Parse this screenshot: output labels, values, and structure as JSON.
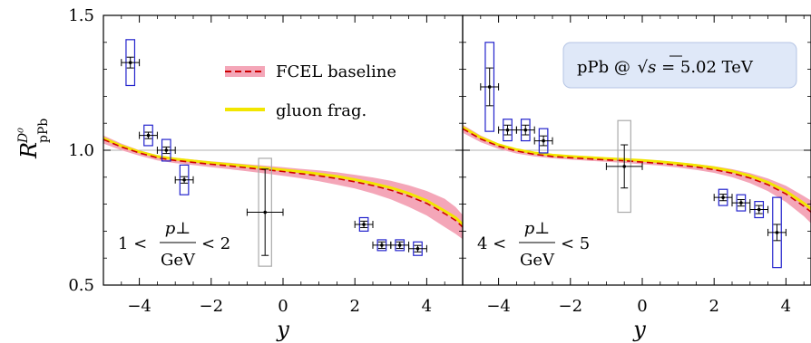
{
  "chart_data": {
    "type": "scatter",
    "ylabel": "R^{D^0}_{pPb}",
    "xlabel": "y",
    "ylim": [
      0.5,
      1.5
    ],
    "xlim": [
      -5,
      5
    ],
    "yticks": [
      0.5,
      1.0,
      1.5
    ],
    "ytick_labels": [
      "0.5",
      "1.0",
      "1.5"
    ],
    "xticks": [
      -4,
      -2,
      0,
      2,
      4
    ],
    "xtick_labels": [
      "−4",
      "−2",
      "0",
      "2",
      "4"
    ],
    "reference_line": 1.0,
    "legend": {
      "placement": "top-center of left panel",
      "entries": [
        {
          "label": "FCEL baseline",
          "color": "#cc0000",
          "band_color": "#f4a6b8",
          "style": "dashed-with-band"
        },
        {
          "label": "gluon frag.",
          "color": "#f2e600",
          "style": "solid"
        }
      ]
    },
    "system_label": "pPb @ √s = 5.02 TeV",
    "system_label_parts": {
      "prefix": "pPb @ ",
      "sqrt_arg": "s",
      "suffix": " = 5.02 TeV"
    },
    "colors": {
      "box_measure": "#2222cc",
      "box_gray": "#aaaaaa",
      "ref_line": "#b0b0b0"
    },
    "panels": [
      {
        "name": "pt-1-2",
        "annotation": {
          "lhs": "1 <",
          "num": "p⊥",
          "den": "GeV",
          "rhs": "< 2"
        },
        "band": {
          "x": [
            -5,
            -4.5,
            -4,
            -3.5,
            -3,
            -2.5,
            -2,
            -1.5,
            -1,
            -0.5,
            0,
            0.5,
            1,
            1.5,
            2,
            2.5,
            3,
            3.5,
            4,
            4.5,
            4.8,
            5
          ],
          "lower": [
            1.025,
            1.0,
            0.98,
            0.962,
            0.952,
            0.945,
            0.937,
            0.93,
            0.922,
            0.914,
            0.905,
            0.896,
            0.885,
            0.872,
            0.858,
            0.84,
            0.818,
            0.79,
            0.758,
            0.715,
            0.69,
            0.67
          ],
          "upper": [
            1.055,
            1.025,
            1.0,
            0.982,
            0.972,
            0.965,
            0.959,
            0.954,
            0.948,
            0.943,
            0.937,
            0.931,
            0.925,
            0.918,
            0.909,
            0.899,
            0.887,
            0.87,
            0.849,
            0.82,
            0.79,
            0.76
          ]
        },
        "fcel": {
          "x": [
            -5,
            -4.5,
            -4,
            -3.5,
            -3,
            -2.5,
            -2,
            -1.5,
            -1,
            -0.5,
            0,
            0.5,
            1,
            1.5,
            2,
            2.5,
            3,
            3.5,
            4,
            4.5,
            4.8,
            5
          ],
          "y": [
            1.04,
            1.012,
            0.99,
            0.972,
            0.962,
            0.955,
            0.948,
            0.942,
            0.935,
            0.928,
            0.921,
            0.913,
            0.905,
            0.895,
            0.883,
            0.869,
            0.852,
            0.83,
            0.803,
            0.765,
            0.74,
            0.715
          ]
        },
        "gluon": {
          "x": [
            -5,
            -4.5,
            -4,
            -3.5,
            -3,
            -2.5,
            -2,
            -1.5,
            -1,
            -0.5,
            0,
            0.5,
            1,
            1.5,
            2,
            2.5,
            3,
            3.5,
            4,
            4.5,
            4.8,
            5
          ],
          "y": [
            1.044,
            1.016,
            0.994,
            0.977,
            0.967,
            0.96,
            0.953,
            0.947,
            0.941,
            0.934,
            0.927,
            0.92,
            0.912,
            0.903,
            0.891,
            0.877,
            0.861,
            0.84,
            0.813,
            0.775,
            0.75,
            0.725
          ]
        },
        "points": [
          {
            "x": -4.25,
            "y": 1.325,
            "xerr": 0.25,
            "yerr": 0.02,
            "box_half_w": 0.12,
            "box_half_h": 0.085,
            "box": "blue"
          },
          {
            "x": -3.75,
            "y": 1.055,
            "xerr": 0.25,
            "yerr": 0.012,
            "box_half_w": 0.12,
            "box_half_h": 0.038,
            "box": "blue"
          },
          {
            "x": -3.25,
            "y": 1.0,
            "xerr": 0.25,
            "yerr": 0.012,
            "box_half_w": 0.12,
            "box_half_h": 0.04,
            "box": "blue"
          },
          {
            "x": -2.75,
            "y": 0.89,
            "xerr": 0.25,
            "yerr": 0.012,
            "box_half_w": 0.12,
            "box_half_h": 0.055,
            "box": "blue"
          },
          {
            "x": -0.5,
            "y": 0.77,
            "xerr": 0.5,
            "yerr": 0.16,
            "box_half_w": 0.18,
            "box_half_h": 0.2,
            "box": "gray"
          },
          {
            "x": 2.25,
            "y": 0.725,
            "xerr": 0.25,
            "yerr": 0.012,
            "box_half_w": 0.12,
            "box_half_h": 0.025,
            "box": "blue"
          },
          {
            "x": 2.75,
            "y": 0.648,
            "xerr": 0.25,
            "yerr": 0.012,
            "box_half_w": 0.12,
            "box_half_h": 0.02,
            "box": "blue"
          },
          {
            "x": 3.25,
            "y": 0.648,
            "xerr": 0.25,
            "yerr": 0.012,
            "box_half_w": 0.12,
            "box_half_h": 0.02,
            "box": "blue"
          },
          {
            "x": 3.75,
            "y": 0.635,
            "xerr": 0.25,
            "yerr": 0.012,
            "box_half_w": 0.12,
            "box_half_h": 0.025,
            "box": "blue"
          }
        ]
      },
      {
        "name": "pt-4-5",
        "annotation": {
          "lhs": "4 <",
          "num": "p⊥",
          "den": "GeV",
          "rhs": "< 5"
        },
        "band": {
          "x": [
            -5,
            -4.5,
            -4,
            -3.5,
            -3,
            -2.5,
            -2,
            -1.5,
            -1,
            -0.5,
            0,
            0.5,
            1,
            1.5,
            2,
            2.5,
            3,
            3.5,
            4,
            4.5,
            4.8,
            5
          ],
          "lower": [
            1.065,
            1.03,
            1.005,
            0.988,
            0.977,
            0.97,
            0.965,
            0.961,
            0.957,
            0.953,
            0.948,
            0.943,
            0.936,
            0.927,
            0.916,
            0.9,
            0.878,
            0.848,
            0.808,
            0.755,
            0.715,
            0.68
          ],
          "upper": [
            1.095,
            1.055,
            1.025,
            1.005,
            0.992,
            0.984,
            0.978,
            0.974,
            0.971,
            0.968,
            0.964,
            0.96,
            0.955,
            0.949,
            0.941,
            0.93,
            0.915,
            0.895,
            0.868,
            0.83,
            0.805,
            0.78
          ]
        },
        "fcel": {
          "x": [
            -5,
            -4.5,
            -4,
            -3.5,
            -3,
            -2.5,
            -2,
            -1.5,
            -1,
            -0.5,
            0,
            0.5,
            1,
            1.5,
            2,
            2.5,
            3,
            3.5,
            4,
            4.5,
            4.8,
            5
          ],
          "y": [
            1.08,
            1.042,
            1.015,
            0.997,
            0.985,
            0.977,
            0.972,
            0.968,
            0.964,
            0.961,
            0.956,
            0.951,
            0.945,
            0.938,
            0.928,
            0.915,
            0.897,
            0.872,
            0.838,
            0.792,
            0.76,
            0.73
          ]
        },
        "gluon": {
          "x": [
            -5,
            -4.5,
            -4,
            -3.5,
            -3,
            -2.5,
            -2,
            -1.5,
            -1,
            -0.5,
            0,
            0.5,
            1,
            1.5,
            2,
            2.5,
            3,
            3.5,
            4,
            4.5,
            4.8,
            5
          ],
          "y": [
            1.085,
            1.047,
            1.02,
            1.002,
            0.99,
            0.982,
            0.977,
            0.973,
            0.969,
            0.966,
            0.962,
            0.957,
            0.951,
            0.944,
            0.935,
            0.922,
            0.905,
            0.881,
            0.848,
            0.803,
            0.772,
            0.742
          ]
        },
        "points": [
          {
            "x": -4.25,
            "y": 1.235,
            "xerr": 0.25,
            "yerr": 0.07,
            "box_half_w": 0.12,
            "box_half_h": 0.165,
            "box": "blue"
          },
          {
            "x": -3.75,
            "y": 1.075,
            "xerr": 0.25,
            "yerr": 0.018,
            "box_half_w": 0.12,
            "box_half_h": 0.04,
            "box": "blue"
          },
          {
            "x": -3.25,
            "y": 1.075,
            "xerr": 0.25,
            "yerr": 0.018,
            "box_half_w": 0.12,
            "box_half_h": 0.04,
            "box": "blue"
          },
          {
            "x": -2.75,
            "y": 1.035,
            "xerr": 0.25,
            "yerr": 0.018,
            "box_half_w": 0.12,
            "box_half_h": 0.045,
            "box": "blue"
          },
          {
            "x": -0.5,
            "y": 0.94,
            "xerr": 0.5,
            "yerr": 0.08,
            "box_half_w": 0.18,
            "box_half_h": 0.17,
            "box": "gray"
          },
          {
            "x": 2.25,
            "y": 0.825,
            "xerr": 0.25,
            "yerr": 0.012,
            "box_half_w": 0.12,
            "box_half_h": 0.03,
            "box": "blue"
          },
          {
            "x": 2.75,
            "y": 0.805,
            "xerr": 0.25,
            "yerr": 0.012,
            "box_half_w": 0.12,
            "box_half_h": 0.03,
            "box": "blue"
          },
          {
            "x": 3.25,
            "y": 0.78,
            "xerr": 0.25,
            "yerr": 0.015,
            "box_half_w": 0.12,
            "box_half_h": 0.03,
            "box": "blue"
          },
          {
            "x": 3.75,
            "y": 0.695,
            "xerr": 0.25,
            "yerr": 0.03,
            "box_half_w": 0.12,
            "box_half_h": 0.13,
            "box": "blue"
          }
        ]
      }
    ]
  }
}
